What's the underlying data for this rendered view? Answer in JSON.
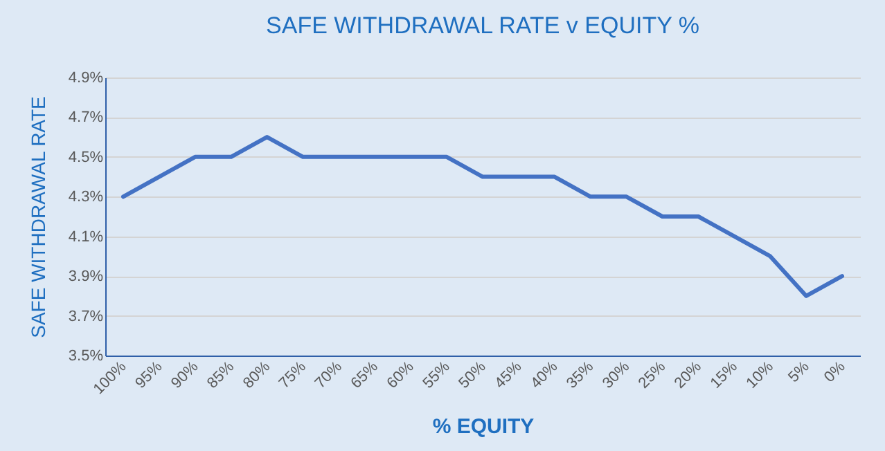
{
  "chart_data": {
    "type": "line",
    "title": "SAFE WITHDRAWAL RATE v EQUITY %",
    "xlabel": "% EQUITY",
    "ylabel": "SAFE WITHDRAWAL RATE",
    "categories": [
      "100%",
      "95%",
      "90%",
      "85%",
      "80%",
      "75%",
      "70%",
      "65%",
      "60%",
      "55%",
      "50%",
      "45%",
      "40%",
      "35%",
      "30%",
      "25%",
      "20%",
      "15%",
      "10%",
      "5%",
      "0%"
    ],
    "series": [
      {
        "color": "#4472c4",
        "values": [
          4.3,
          4.4,
          4.5,
          4.5,
          4.6,
          4.5,
          4.5,
          4.5,
          4.5,
          4.5,
          4.4,
          4.4,
          4.4,
          4.3,
          4.3,
          4.2,
          4.2,
          4.1,
          4.0,
          3.8,
          3.9
        ]
      }
    ],
    "ylim": [
      3.5,
      4.9
    ],
    "yticks": [
      {
        "value": 3.5,
        "label": "3.5%"
      },
      {
        "value": 3.7,
        "label": "3.7%"
      },
      {
        "value": 3.9,
        "label": "3.9%"
      },
      {
        "value": 4.1,
        "label": "4.1%"
      },
      {
        "value": 4.3,
        "label": "4.3%"
      },
      {
        "value": 4.5,
        "label": "4.5%"
      },
      {
        "value": 4.7,
        "label": "4.7%"
      },
      {
        "value": 4.9,
        "label": "4.9%"
      }
    ],
    "grid": "y",
    "legend": false,
    "marker": "none",
    "line_style": "solid"
  }
}
